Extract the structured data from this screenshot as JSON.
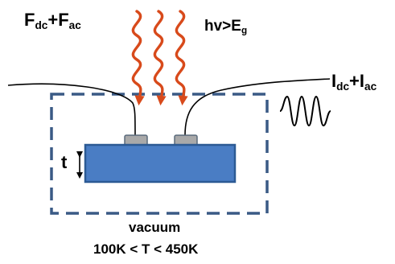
{
  "labels": {
    "force_main": "F",
    "force_dc_sub": "dc",
    "force_plus": "+F",
    "force_ac_sub": "ac",
    "light_main": "hv>E",
    "light_sub": "g",
    "current_main": "I",
    "current_dc_sub": "dc",
    "current_plus": "+I",
    "current_ac_sub": "ac",
    "thickness": "t",
    "environment": "vacuum",
    "temperature_range": "100K < T < 450K"
  },
  "colors": {
    "photon_arrows": "#d84a1b",
    "sample": "#4a7dc4",
    "sample_edge": "#2c5a94",
    "contacts": "#a9a9a9",
    "chamber_border": "#3a5a85",
    "wires": "#000000"
  },
  "icons": {
    "photon": "wavy-arrow-icon",
    "ac_signal": "sine-wave-icon",
    "thickness": "double-arrow-icon"
  }
}
